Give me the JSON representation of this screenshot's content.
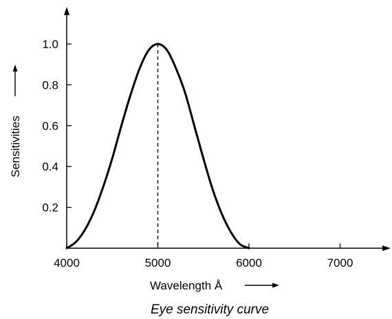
{
  "chart_data": {
    "type": "line",
    "title": "Eye sensitivity curve",
    "xlabel": "Wavelength Å",
    "ylabel": "Sensitivities",
    "xlim": [
      4000,
      7500
    ],
    "ylim": [
      0,
      1.15
    ],
    "x_ticks": [
      4000,
      5000,
      6000,
      7000
    ],
    "x_tick_labels": [
      "4000",
      "5000",
      "6000",
      "7000"
    ],
    "y_ticks": [
      0.2,
      0.4,
      0.6,
      0.8,
      1.0
    ],
    "y_tick_labels": [
      "0.2",
      "0.4",
      "0.6",
      "0.8",
      "1.0"
    ],
    "peak": {
      "x": 5000,
      "y": 1.0
    },
    "series": [
      {
        "x": [
          4000,
          4100,
          4200,
          4300,
          4400,
          4500,
          4600,
          4700,
          4800,
          4900,
          5000,
          5100,
          5200,
          5300,
          5400,
          5500,
          5600,
          5700,
          5800,
          5900,
          6000
        ],
        "values": [
          0.0,
          0.03,
          0.09,
          0.18,
          0.3,
          0.44,
          0.6,
          0.75,
          0.88,
          0.97,
          1.0,
          0.97,
          0.88,
          0.76,
          0.6,
          0.44,
          0.29,
          0.17,
          0.08,
          0.02,
          0.0
        ]
      }
    ],
    "grid": false,
    "colors": {
      "line": "#000000",
      "axis": "#000000"
    }
  }
}
